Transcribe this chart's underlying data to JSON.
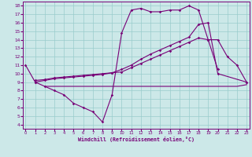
{
  "xlabel": "Windchill (Refroidissement éolien,°C)",
  "xlim": [
    -0.3,
    23.3
  ],
  "ylim": [
    3.5,
    18.5
  ],
  "xticks": [
    0,
    1,
    2,
    3,
    4,
    5,
    6,
    7,
    8,
    9,
    10,
    11,
    12,
    13,
    14,
    15,
    16,
    17,
    18,
    19,
    20,
    21,
    22,
    23
  ],
  "yticks": [
    4,
    5,
    6,
    7,
    8,
    9,
    10,
    11,
    12,
    13,
    14,
    15,
    16,
    17,
    18
  ],
  "bg_color": "#cce8e8",
  "line_color": "#770077",
  "grid_color": "#99cccc",
  "line1_x": [
    0,
    1,
    2,
    3,
    4,
    5,
    6,
    7,
    8,
    9,
    10,
    11,
    12,
    13,
    14,
    15,
    16,
    17,
    18,
    19,
    20
  ],
  "line1_y": [
    11,
    9,
    8.5,
    8,
    7.5,
    6.5,
    6,
    5.5,
    4.3,
    7.5,
    14.8,
    17.5,
    17.7,
    17.3,
    17.3,
    17.5,
    17.5,
    18,
    17.5,
    14,
    10.5
  ],
  "line2_x": [
    2,
    3,
    4,
    5,
    6,
    7,
    8,
    9,
    10,
    11,
    12,
    13,
    14,
    15,
    16,
    17,
    18,
    19,
    20,
    21,
    22,
    23
  ],
  "line2_y": [
    8.5,
    8.5,
    8.5,
    8.5,
    8.5,
    8.5,
    8.5,
    8.5,
    8.5,
    8.5,
    8.5,
    8.5,
    8.5,
    8.5,
    8.5,
    8.5,
    8.5,
    8.5,
    8.5,
    8.5,
    8.5,
    8.7
  ],
  "line3_x": [
    1,
    2,
    3,
    4,
    5,
    6,
    7,
    8,
    9,
    10,
    11,
    12,
    13,
    14,
    15,
    16,
    17,
    18,
    19,
    20,
    21,
    22,
    23
  ],
  "line3_y": [
    9.2,
    9.3,
    9.5,
    9.6,
    9.7,
    9.8,
    9.9,
    10.0,
    10.1,
    10.2,
    10.7,
    11.2,
    11.7,
    12.2,
    12.7,
    13.2,
    13.7,
    14.2,
    14.0,
    14.0,
    12.0,
    11.0,
    9.0
  ],
  "line4_x": [
    1,
    2,
    3,
    4,
    5,
    6,
    7,
    8,
    9,
    10,
    11,
    12,
    13,
    14,
    15,
    16,
    17,
    18,
    19,
    20,
    23
  ],
  "line4_y": [
    9.0,
    9.2,
    9.4,
    9.5,
    9.6,
    9.7,
    9.8,
    9.9,
    10.1,
    10.5,
    11.0,
    11.7,
    12.3,
    12.8,
    13.3,
    13.8,
    14.3,
    15.8,
    16.0,
    10.0,
    9.0
  ]
}
